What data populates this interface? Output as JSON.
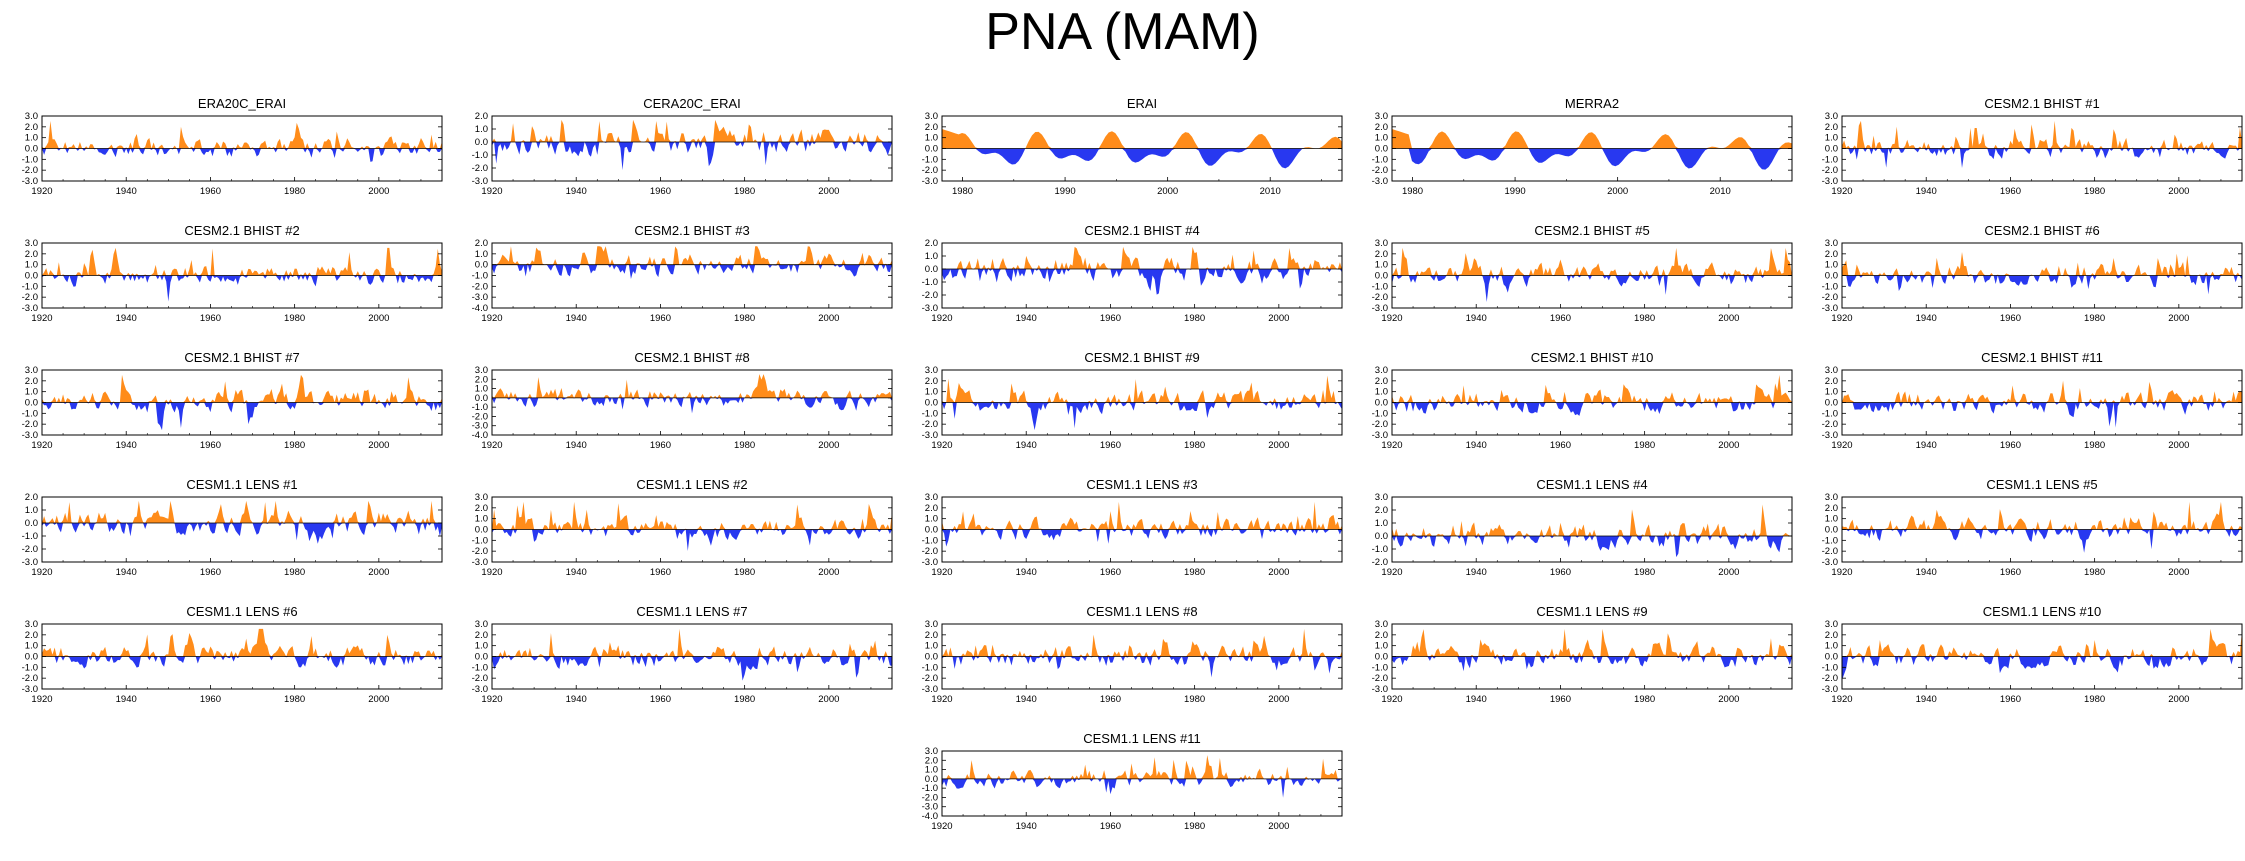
{
  "figure": {
    "title": "PNA (MAM)"
  },
  "colors": {
    "positive": "#ff8c1a",
    "negative": "#2838f0",
    "axis": "#000000"
  },
  "chart_data": [
    {
      "type": "area",
      "title": "ERA20C_ERAI",
      "xrange": [
        1920,
        2015
      ],
      "xticks": [
        1920,
        1940,
        1960,
        1980,
        2000
      ],
      "ylim": [
        -3.0,
        3.0
      ],
      "yticks": [
        "3.0",
        "2.0",
        "1.0",
        "0.0",
        "-1.0",
        "-2.0",
        "-3.0"
      ],
      "seed": 11,
      "style": "annual"
    },
    {
      "type": "area",
      "title": "CERA20C_ERAI",
      "xrange": [
        1920,
        2015
      ],
      "xticks": [
        1920,
        1940,
        1960,
        1980,
        2000
      ],
      "ylim": [
        -3.0,
        2.0
      ],
      "yticks": [
        "2.0",
        "1.0",
        "0.0",
        "-1.0",
        "-2.0",
        "-3.0"
      ],
      "seed": 23,
      "style": "annual"
    },
    {
      "type": "area",
      "title": "ERAI",
      "xrange": [
        1978,
        2017
      ],
      "xticks": [
        1980,
        1990,
        2000,
        2010
      ],
      "ylim": [
        -3.0,
        3.0
      ],
      "yticks": [
        "3.0",
        "2.0",
        "1.0",
        "0.0",
        "-1.0",
        "-2.0",
        "-3.0"
      ],
      "seed": 37,
      "style": "smooth"
    },
    {
      "type": "area",
      "title": "MERRA2",
      "xrange": [
        1978,
        2017
      ],
      "xticks": [
        1980,
        1990,
        2000,
        2010
      ],
      "ylim": [
        -3.0,
        3.0
      ],
      "yticks": [
        "3.0",
        "2.0",
        "1.0",
        "0.0",
        "-1.0",
        "-2.0",
        "-3.0"
      ],
      "seed": 41,
      "style": "smooth"
    },
    {
      "type": "area",
      "title": "CESM2.1 BHIST #1",
      "xrange": [
        1920,
        2015
      ],
      "xticks": [
        1920,
        1940,
        1960,
        1980,
        2000
      ],
      "ylim": [
        -3.0,
        3.0
      ],
      "yticks": [
        "3.0",
        "2.0",
        "1.0",
        "0.0",
        "-1.0",
        "-2.0",
        "-3.0"
      ],
      "seed": 53,
      "style": "annual"
    },
    {
      "type": "area",
      "title": "CESM2.1 BHIST #2",
      "xrange": [
        1920,
        2015
      ],
      "xticks": [
        1920,
        1940,
        1960,
        1980,
        2000
      ],
      "ylim": [
        -3.0,
        3.0
      ],
      "yticks": [
        "3.0",
        "2.0",
        "1.0",
        "0.0",
        "-1.0",
        "-2.0",
        "-3.0"
      ],
      "seed": 61,
      "style": "annual"
    },
    {
      "type": "area",
      "title": "CESM2.1 BHIST #3",
      "xrange": [
        1920,
        2015
      ],
      "xticks": [
        1920,
        1940,
        1960,
        1980,
        2000
      ],
      "ylim": [
        -4.0,
        2.0
      ],
      "yticks": [
        "2.0",
        "1.0",
        "0.0",
        "-1.0",
        "-2.0",
        "-3.0",
        "-4.0"
      ],
      "seed": 67,
      "style": "annual"
    },
    {
      "type": "area",
      "title": "CESM2.1 BHIST #4",
      "xrange": [
        1920,
        2015
      ],
      "xticks": [
        1920,
        1940,
        1960,
        1980,
        2000
      ],
      "ylim": [
        -3.0,
        2.0
      ],
      "yticks": [
        "2.0",
        "1.0",
        "0.0",
        "-1.0",
        "-2.0",
        "-3.0"
      ],
      "seed": 71,
      "style": "annual"
    },
    {
      "type": "area",
      "title": "CESM2.1 BHIST #5",
      "xrange": [
        1920,
        2015
      ],
      "xticks": [
        1920,
        1940,
        1960,
        1980,
        2000
      ],
      "ylim": [
        -3.0,
        3.0
      ],
      "yticks": [
        "3.0",
        "2.0",
        "1.0",
        "0.0",
        "-1.0",
        "-2.0",
        "-3.0"
      ],
      "seed": 79,
      "style": "annual"
    },
    {
      "type": "area",
      "title": "CESM2.1 BHIST #6",
      "xrange": [
        1920,
        2015
      ],
      "xticks": [
        1920,
        1940,
        1960,
        1980,
        2000
      ],
      "ylim": [
        -3.0,
        3.0
      ],
      "yticks": [
        "3.0",
        "2.0",
        "1.0",
        "0.0",
        "-1.0",
        "-2.0",
        "-3.0"
      ],
      "seed": 83,
      "style": "annual"
    },
    {
      "type": "area",
      "title": "CESM2.1 BHIST #7",
      "xrange": [
        1920,
        2015
      ],
      "xticks": [
        1920,
        1940,
        1960,
        1980,
        2000
      ],
      "ylim": [
        -3.0,
        3.0
      ],
      "yticks": [
        "3.0",
        "2.0",
        "1.0",
        "0.0",
        "-1.0",
        "-2.0",
        "-3.0"
      ],
      "seed": 89,
      "style": "annual"
    },
    {
      "type": "area",
      "title": "CESM2.1 BHIST #8",
      "xrange": [
        1920,
        2015
      ],
      "xticks": [
        1920,
        1940,
        1960,
        1980,
        2000
      ],
      "ylim": [
        -4.0,
        3.0
      ],
      "yticks": [
        "3.0",
        "2.0",
        "1.0",
        "0.0",
        "-1.0",
        "-2.0",
        "-3.0",
        "-4.0"
      ],
      "seed": 97,
      "style": "annual"
    },
    {
      "type": "area",
      "title": "CESM2.1 BHIST #9",
      "xrange": [
        1920,
        2015
      ],
      "xticks": [
        1920,
        1940,
        1960,
        1980,
        2000
      ],
      "ylim": [
        -3.0,
        3.0
      ],
      "yticks": [
        "3.0",
        "2.0",
        "1.0",
        "0.0",
        "-1.0",
        "-2.0",
        "-3.0"
      ],
      "seed": 101,
      "style": "annual"
    },
    {
      "type": "area",
      "title": "CESM2.1 BHIST #10",
      "xrange": [
        1920,
        2015
      ],
      "xticks": [
        1920,
        1940,
        1960,
        1980,
        2000
      ],
      "ylim": [
        -3.0,
        3.0
      ],
      "yticks": [
        "3.0",
        "2.0",
        "1.0",
        "0.0",
        "-1.0",
        "-2.0",
        "-3.0"
      ],
      "seed": 103,
      "style": "annual"
    },
    {
      "type": "area",
      "title": "CESM2.1 BHIST #11",
      "xrange": [
        1920,
        2015
      ],
      "xticks": [
        1920,
        1940,
        1960,
        1980,
        2000
      ],
      "ylim": [
        -3.0,
        3.0
      ],
      "yticks": [
        "3.0",
        "2.0",
        "1.0",
        "0.0",
        "-1.0",
        "-2.0",
        "-3.0"
      ],
      "seed": 107,
      "style": "annual"
    },
    {
      "type": "area",
      "title": "CESM1.1 LENS #1",
      "xrange": [
        1920,
        2015
      ],
      "xticks": [
        1920,
        1940,
        1960,
        1980,
        2000
      ],
      "ylim": [
        -3.0,
        2.0
      ],
      "yticks": [
        "2.0",
        "1.0",
        "0.0",
        "-1.0",
        "-2.0",
        "-3.0"
      ],
      "seed": 109,
      "style": "annual"
    },
    {
      "type": "area",
      "title": "CESM1.1 LENS #2",
      "xrange": [
        1920,
        2015
      ],
      "xticks": [
        1920,
        1940,
        1960,
        1980,
        2000
      ],
      "ylim": [
        -3.0,
        3.0
      ],
      "yticks": [
        "3.0",
        "2.0",
        "1.0",
        "0.0",
        "-1.0",
        "-2.0",
        "-3.0"
      ],
      "seed": 113,
      "style": "annual"
    },
    {
      "type": "area",
      "title": "CESM1.1 LENS #3",
      "xrange": [
        1920,
        2015
      ],
      "xticks": [
        1920,
        1940,
        1960,
        1980,
        2000
      ],
      "ylim": [
        -3.0,
        3.0
      ],
      "yticks": [
        "3.0",
        "2.0",
        "1.0",
        "0.0",
        "-1.0",
        "-2.0",
        "-3.0"
      ],
      "seed": 127,
      "style": "annual"
    },
    {
      "type": "area",
      "title": "CESM1.1 LENS #4",
      "xrange": [
        1920,
        2015
      ],
      "xticks": [
        1920,
        1940,
        1960,
        1980,
        2000
      ],
      "ylim": [
        -2.0,
        3.0
      ],
      "yticks": [
        "3.0",
        "2.0",
        "1.0",
        "0.0",
        "-1.0",
        "-2.0"
      ],
      "seed": 131,
      "style": "annual"
    },
    {
      "type": "area",
      "title": "CESM1.1 LENS #5",
      "xrange": [
        1920,
        2015
      ],
      "xticks": [
        1920,
        1940,
        1960,
        1980,
        2000
      ],
      "ylim": [
        -3.0,
        3.0
      ],
      "yticks": [
        "3.0",
        "2.0",
        "1.0",
        "0.0",
        "-1.0",
        "-2.0",
        "-3.0"
      ],
      "seed": 137,
      "style": "annual"
    },
    {
      "type": "area",
      "title": "CESM1.1 LENS #6",
      "xrange": [
        1920,
        2015
      ],
      "xticks": [
        1920,
        1940,
        1960,
        1980,
        2000
      ],
      "ylim": [
        -3.0,
        3.0
      ],
      "yticks": [
        "3.0",
        "2.0",
        "1.0",
        "0.0",
        "-1.0",
        "-2.0",
        "-3.0"
      ],
      "seed": 139,
      "style": "annual"
    },
    {
      "type": "area",
      "title": "CESM1.1 LENS #7",
      "xrange": [
        1920,
        2015
      ],
      "xticks": [
        1920,
        1940,
        1960,
        1980,
        2000
      ],
      "ylim": [
        -3.0,
        3.0
      ],
      "yticks": [
        "3.0",
        "2.0",
        "1.0",
        "0.0",
        "-1.0",
        "-2.0",
        "-3.0"
      ],
      "seed": 149,
      "style": "annual"
    },
    {
      "type": "area",
      "title": "CESM1.1 LENS #8",
      "xrange": [
        1920,
        2015
      ],
      "xticks": [
        1920,
        1940,
        1960,
        1980,
        2000
      ],
      "ylim": [
        -3.0,
        3.0
      ],
      "yticks": [
        "3.0",
        "2.0",
        "1.0",
        "0.0",
        "-1.0",
        "-2.0",
        "-3.0"
      ],
      "seed": 151,
      "style": "annual"
    },
    {
      "type": "area",
      "title": "CESM1.1 LENS #9",
      "xrange": [
        1920,
        2015
      ],
      "xticks": [
        1920,
        1940,
        1960,
        1980,
        2000
      ],
      "ylim": [
        -3.0,
        3.0
      ],
      "yticks": [
        "3.0",
        "2.0",
        "1.0",
        "0.0",
        "-1.0",
        "-2.0",
        "-3.0"
      ],
      "seed": 157,
      "style": "annual"
    },
    {
      "type": "area",
      "title": "CESM1.1 LENS #10",
      "xrange": [
        1920,
        2015
      ],
      "xticks": [
        1920,
        1940,
        1960,
        1980,
        2000
      ],
      "ylim": [
        -3.0,
        3.0
      ],
      "yticks": [
        "3.0",
        "2.0",
        "1.0",
        "0.0",
        "-1.0",
        "-2.0",
        "-3.0"
      ],
      "seed": 163,
      "style": "annual"
    },
    {
      "type": "area",
      "title": "CESM1.1 LENS #11",
      "xrange": [
        1920,
        2015
      ],
      "xticks": [
        1920,
        1940,
        1960,
        1980,
        2000
      ],
      "ylim": [
        -4.0,
        3.0
      ],
      "yticks": [
        "3.0",
        "2.0",
        "1.0",
        "0.0",
        "-1.0",
        "-2.0",
        "-3.0",
        "-4.0"
      ],
      "seed": 167,
      "style": "annual"
    }
  ]
}
